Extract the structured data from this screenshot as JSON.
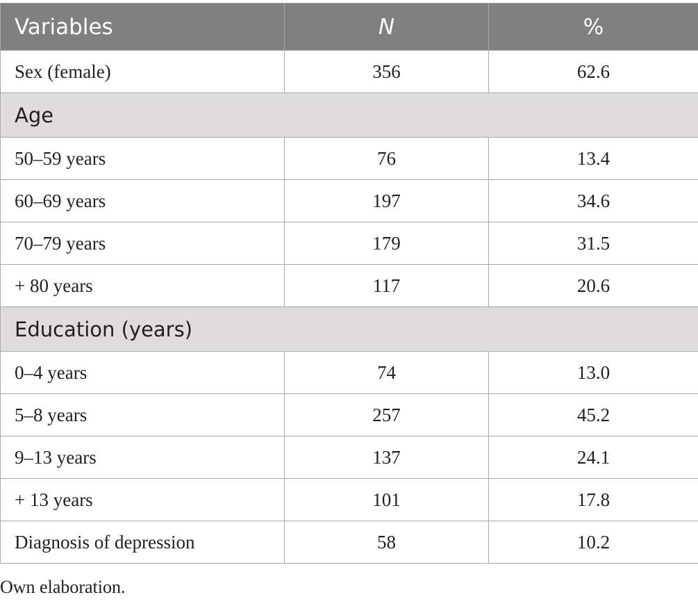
{
  "table": {
    "headers": {
      "variables": "Variables",
      "n": "N",
      "percent": "%"
    },
    "rows": [
      {
        "label": "Sex (female)",
        "n": "356",
        "pct": "62.6"
      }
    ],
    "age": {
      "title": "Age",
      "rows": [
        {
          "label": "50–59 years",
          "n": "76",
          "pct": "13.4"
        },
        {
          "label": "60–69 years",
          "n": "197",
          "pct": "34.6"
        },
        {
          "label": "70–79 years",
          "n": "179",
          "pct": "31.5"
        },
        {
          "label": "+ 80 years",
          "n": "117",
          "pct": "20.6"
        }
      ]
    },
    "education": {
      "title": "Education (years)",
      "rows": [
        {
          "label": "0–4 years",
          "n": "74",
          "pct": "13.0"
        },
        {
          "label": "5–8 years",
          "n": "257",
          "pct": "45.2"
        },
        {
          "label": "9–13 years",
          "n": "137",
          "pct": "24.1"
        },
        {
          "label": "+ 13 years",
          "n": "101",
          "pct": "17.8"
        }
      ]
    },
    "depression": {
      "label": "Diagnosis of depression",
      "n": "58",
      "pct": "10.2"
    }
  },
  "note": "Own elaboration."
}
